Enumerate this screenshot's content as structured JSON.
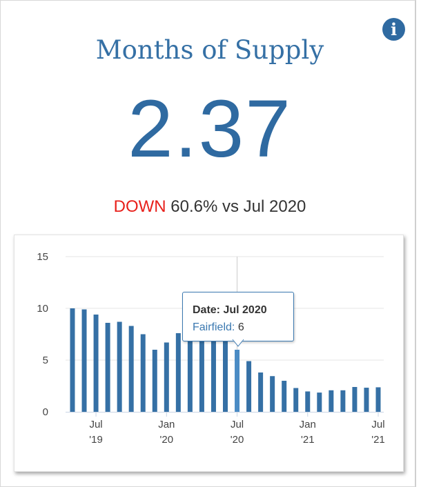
{
  "header": {
    "title": "Months of Supply",
    "value": "2.37",
    "change_direction": "DOWN",
    "change_text": "60.6% vs Jul 2020",
    "info_icon": "info-icon"
  },
  "colors": {
    "bar": "#3570a5",
    "bar_hover": "#4a8bc4",
    "down": "#e8201b",
    "title": "#3570a5"
  },
  "tooltip": {
    "date_label": "Date: Jul 2020",
    "series": "Fairfield:",
    "value": "6"
  },
  "chart_data": {
    "type": "bar",
    "series_name": "Fairfield",
    "categories": [
      "May 2019",
      "Jun 2019",
      "Jul 2019",
      "Aug 2019",
      "Sep 2019",
      "Oct 2019",
      "Nov 2019",
      "Dec 2019",
      "Jan 2020",
      "Feb 2020",
      "Mar 2020",
      "Apr 2020",
      "May 2020",
      "Jun 2020",
      "Jul 2020",
      "Aug 2020",
      "Sep 2020",
      "Oct 2020",
      "Nov 2020",
      "Dec 2020",
      "Jan 2021",
      "Feb 2021",
      "Mar 2021",
      "Apr 2021",
      "May 2021",
      "Jun 2021",
      "Jul 2021"
    ],
    "values": [
      10.0,
      9.9,
      9.4,
      8.6,
      8.7,
      8.3,
      7.5,
      6.0,
      6.7,
      7.6,
      7.8,
      7.3,
      7.1,
      7.2,
      6.0,
      4.9,
      3.8,
      3.45,
      3.0,
      2.3,
      1.97,
      1.86,
      2.08,
      2.08,
      2.4,
      2.33,
      2.37
    ],
    "highlighted_index": 14,
    "ylim": [
      0,
      15
    ],
    "yticks": [
      "0",
      "5",
      "10",
      "15"
    ],
    "xticks": [
      {
        "index": 2,
        "line1": "Jul",
        "line2": "'19"
      },
      {
        "index": 8,
        "line1": "Jan",
        "line2": "'20"
      },
      {
        "index": 14,
        "line1": "Jul",
        "line2": "'20"
      },
      {
        "index": 20,
        "line1": "Jan",
        "line2": "'21"
      },
      {
        "index": 26,
        "line1": "Jul",
        "line2": "'21"
      }
    ],
    "grid": true,
    "legend": "none"
  }
}
